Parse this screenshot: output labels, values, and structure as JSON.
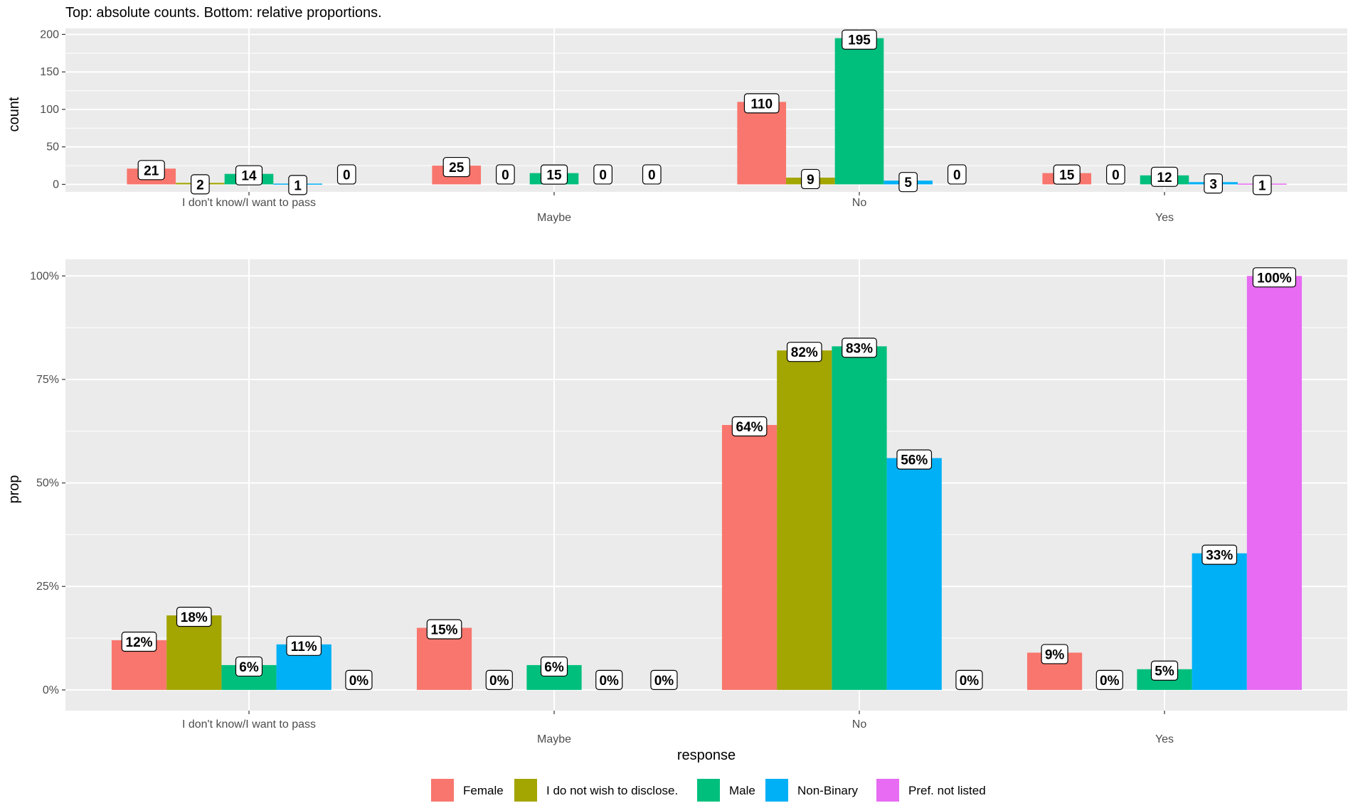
{
  "title": "Top: absolute counts. Bottom: relative proportions.",
  "chart_data": [
    {
      "type": "bar",
      "categories": [
        "I don't know/I want to pass",
        "Maybe",
        "No",
        "Yes"
      ],
      "series": [
        {
          "name": "Female",
          "color": "#F8766D",
          "values": [
            21,
            25,
            110,
            15
          ],
          "labels": [
            "21",
            "25",
            "110",
            "15"
          ]
        },
        {
          "name": "I do not wish to disclose.",
          "color": "#A3A500",
          "values": [
            2,
            0,
            9,
            0
          ],
          "labels": [
            "2",
            "0",
            "9",
            "0"
          ]
        },
        {
          "name": "Male",
          "color": "#00BF7D",
          "values": [
            14,
            15,
            195,
            12
          ],
          "labels": [
            "14",
            "15",
            "195",
            "12"
          ]
        },
        {
          "name": "Non-Binary",
          "color": "#00B0F6",
          "values": [
            1,
            0,
            5,
            3
          ],
          "labels": [
            "1",
            "0",
            "5",
            "3"
          ]
        },
        {
          "name": "Pref. not listed",
          "color": "#E76BF3",
          "values": [
            0,
            0,
            0,
            1
          ],
          "labels": [
            "0",
            "0",
            "0",
            "1"
          ]
        }
      ],
      "xlabel": "",
      "ylabel": "count",
      "ylim": [
        0,
        200
      ],
      "yticks": [
        0,
        50,
        100,
        150,
        200
      ],
      "ytick_labels": [
        "0",
        "50",
        "100",
        "150",
        "200"
      ],
      "grid": true
    },
    {
      "type": "bar",
      "categories": [
        "I don't know/I want to pass",
        "Maybe",
        "No",
        "Yes"
      ],
      "series": [
        {
          "name": "Female",
          "color": "#F8766D",
          "values": [
            0.12,
            0.15,
            0.64,
            0.09
          ],
          "labels": [
            "12%",
            "15%",
            "64%",
            "9%"
          ]
        },
        {
          "name": "I do not wish to disclose.",
          "color": "#A3A500",
          "values": [
            0.18,
            0,
            0.82,
            0
          ],
          "labels": [
            "18%",
            "0%",
            "82%",
            "0%"
          ]
        },
        {
          "name": "Male",
          "color": "#00BF7D",
          "values": [
            0.06,
            0.06,
            0.83,
            0.05
          ],
          "labels": [
            "6%",
            "6%",
            "83%",
            "5%"
          ]
        },
        {
          "name": "Non-Binary",
          "color": "#00B0F6",
          "values": [
            0.11,
            0,
            0.56,
            0.33
          ],
          "labels": [
            "11%",
            "0%",
            "56%",
            "33%"
          ]
        },
        {
          "name": "Pref. not listed",
          "color": "#E76BF3",
          "values": [
            0,
            0,
            0,
            1.0
          ],
          "labels": [
            "0%",
            "0%",
            "0%",
            "100%"
          ]
        }
      ],
      "xlabel": "response",
      "ylabel": "prop",
      "ylim": [
        0,
        1
      ],
      "yticks": [
        0,
        0.25,
        0.5,
        0.75,
        1.0
      ],
      "ytick_labels": [
        "0%",
        "25%",
        "50%",
        "75%",
        "100%"
      ],
      "grid": true
    }
  ],
  "legend": {
    "position": "bottom",
    "entries": [
      {
        "label": "Female",
        "color": "#F8766D"
      },
      {
        "label": "I do not wish to disclose.",
        "color": "#A3A500"
      },
      {
        "label": "Male",
        "color": "#00BF7D"
      },
      {
        "label": "Non-Binary",
        "color": "#00B0F6"
      },
      {
        "label": "Pref. not listed",
        "color": "#E76BF3"
      }
    ]
  }
}
